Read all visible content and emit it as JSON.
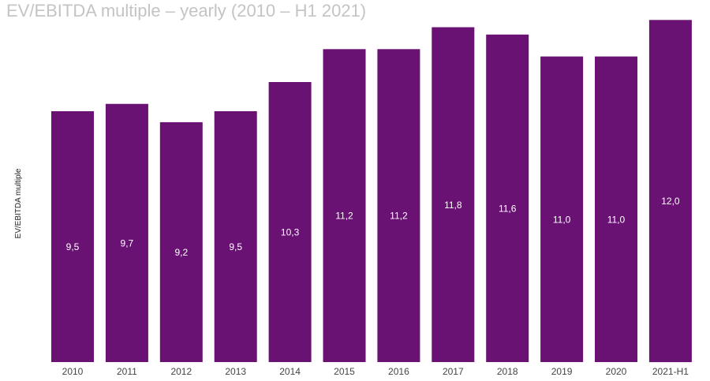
{
  "chart_data": {
    "type": "bar",
    "title": "EV/EBITDA multiple – yearly (2010 – H1 2021)",
    "ylabel": "EV/EBITDA multiple",
    "xlabel": "",
    "categories": [
      "2010",
      "2011",
      "2012",
      "2013",
      "2014",
      "2015",
      "2016",
      "2017",
      "2018",
      "2019",
      "2020",
      "2021-H1"
    ],
    "values": [
      9.5,
      9.7,
      9.2,
      9.5,
      10.3,
      11.2,
      11.2,
      11.8,
      11.6,
      11.0,
      11.0,
      12.0
    ],
    "value_labels": [
      "9,5",
      "9,7",
      "9,2",
      "9,5",
      "10,3",
      "11,2",
      "11,2",
      "11,8",
      "11,6",
      "11,0",
      "11,0",
      "12,0"
    ],
    "bar_color": "#6a1274",
    "label_color": "#ffffff",
    "grid": false,
    "legend": "none"
  }
}
